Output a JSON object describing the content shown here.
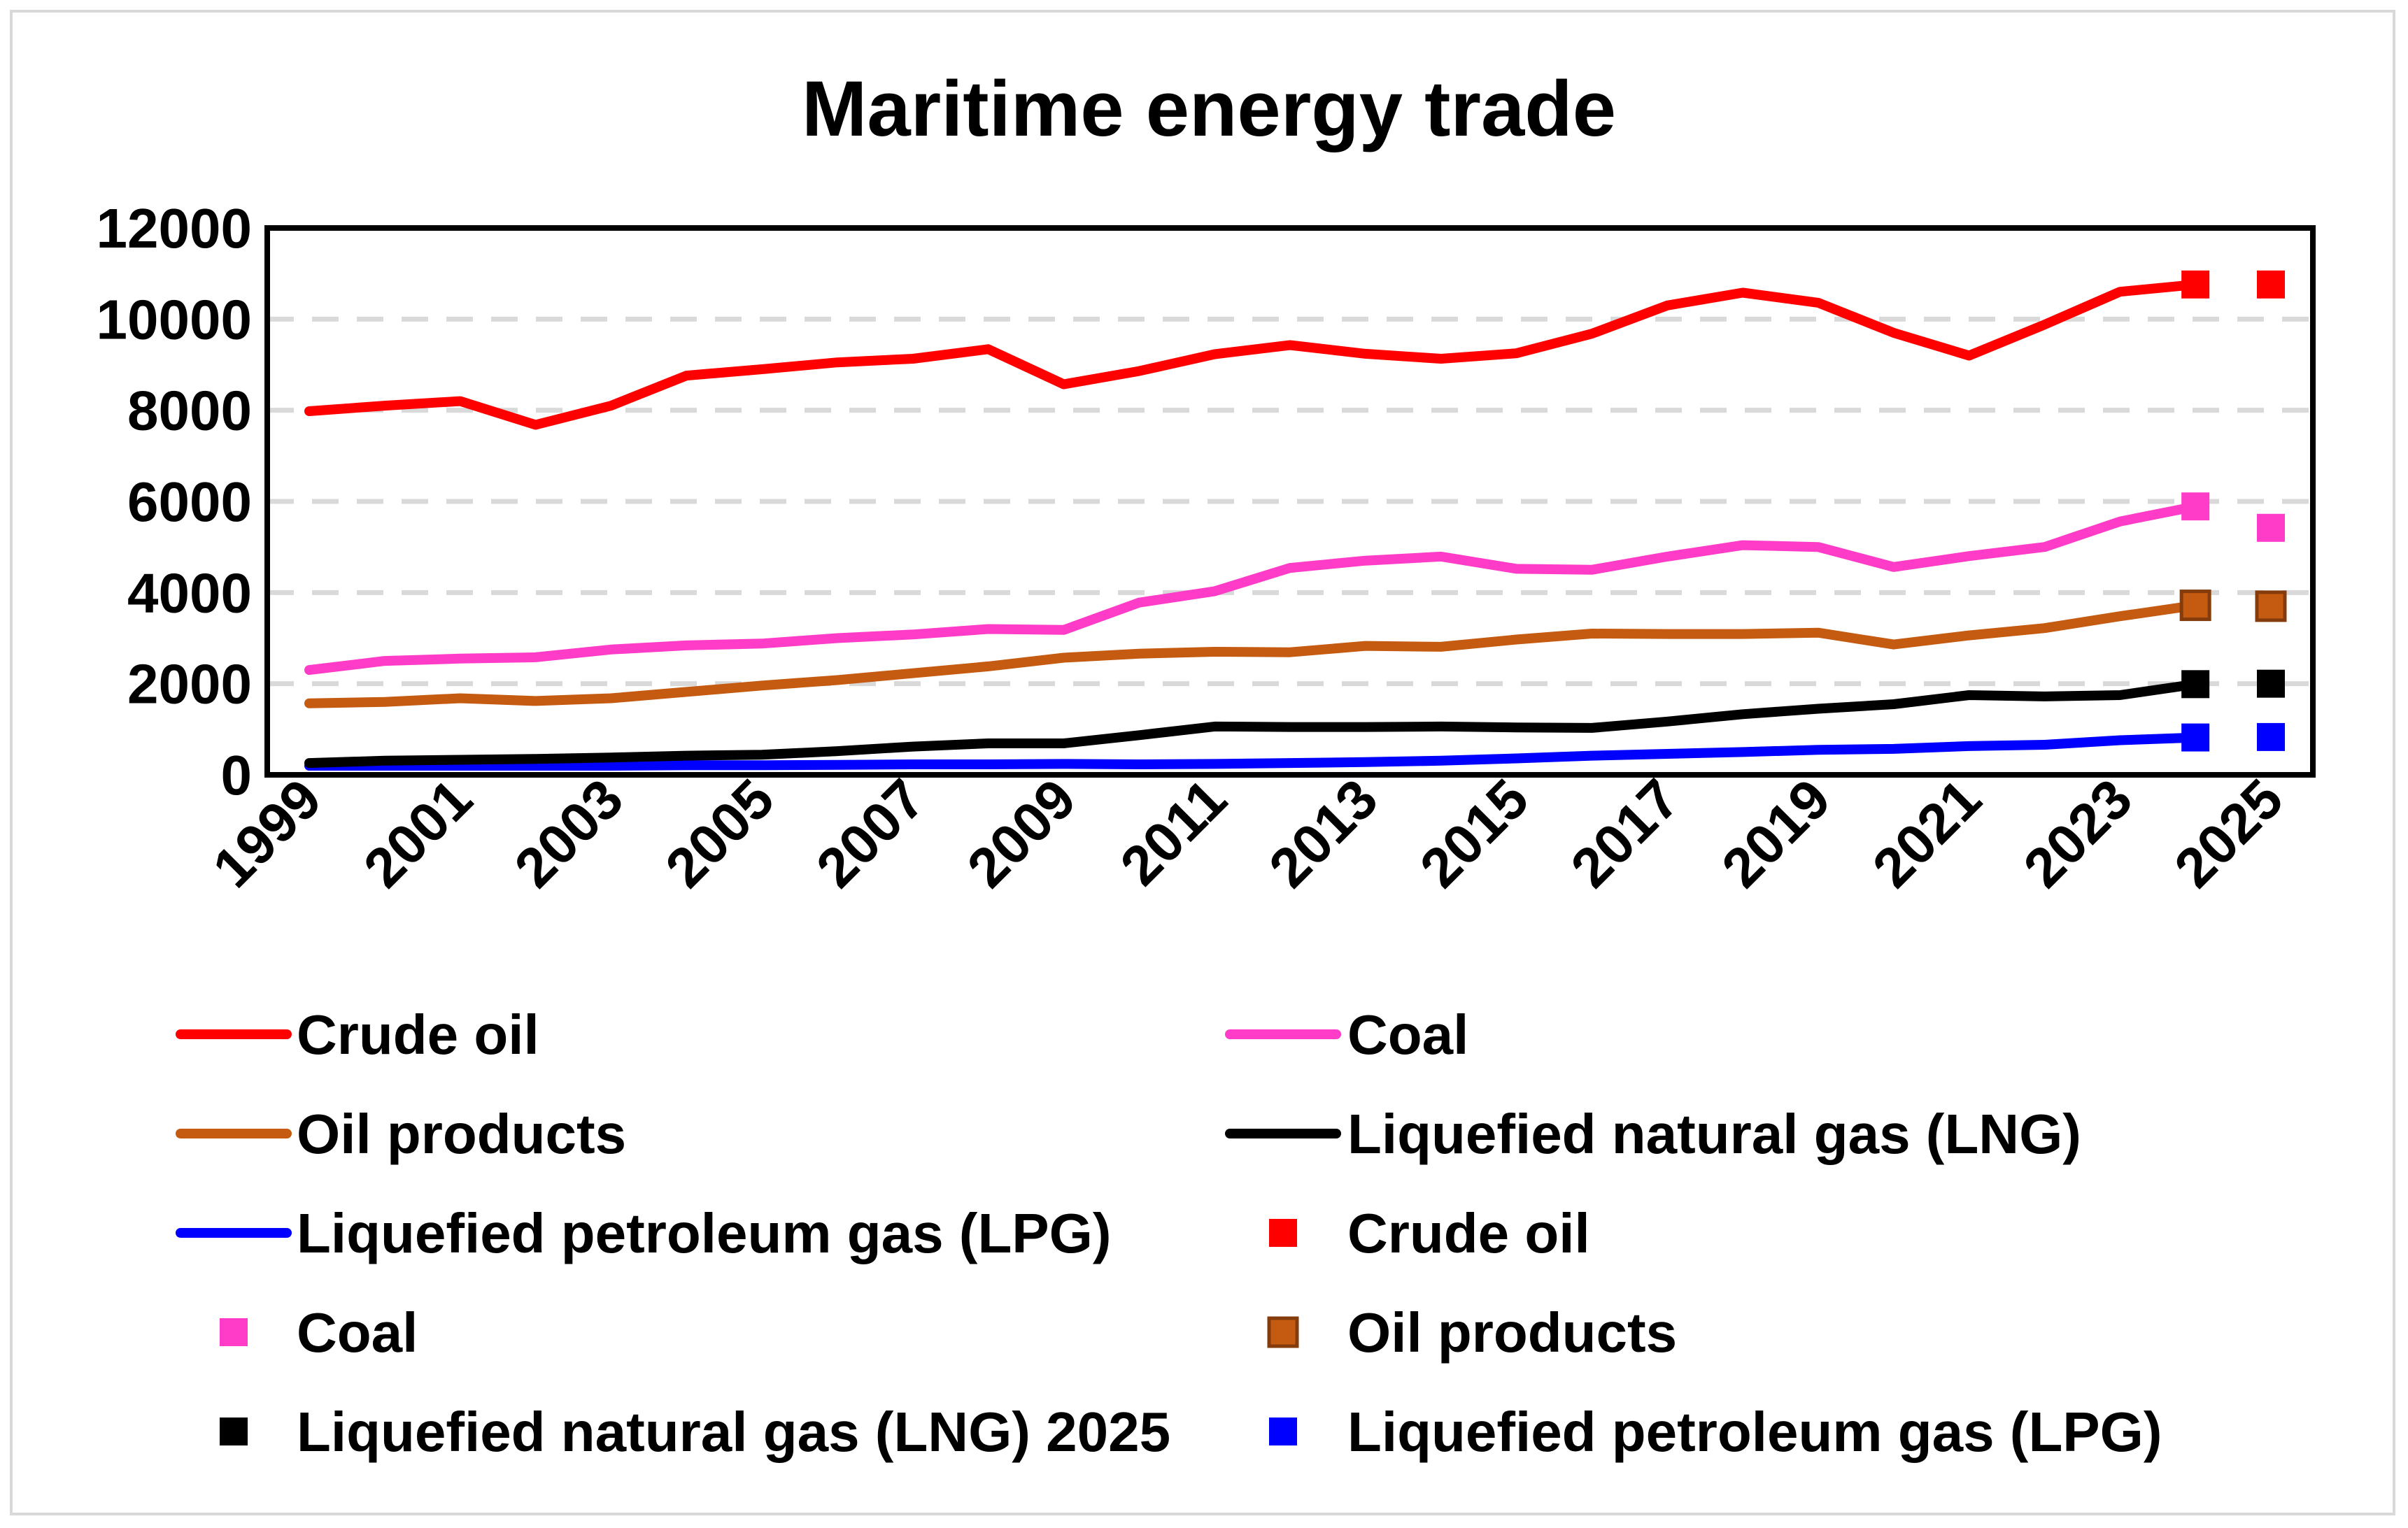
{
  "chart_data": {
    "type": "line",
    "title": "Maritime energy trade",
    "xlabel": "",
    "ylabel": "",
    "ylim": [
      0,
      12000
    ],
    "yticks": [
      "0",
      "2000",
      "4000",
      "6000",
      "8000",
      "10000",
      "12000"
    ],
    "xlim": [
      1999,
      2025
    ],
    "xticks": [
      "1999",
      "2001",
      "2003",
      "2005",
      "2007",
      "2009",
      "2011",
      "2013",
      "2015",
      "2017",
      "2019",
      "2021",
      "2023",
      "2025"
    ],
    "grid": "horizontal dashed",
    "legend_position": "bottom",
    "x": [
      1999,
      2000,
      2001,
      2002,
      2003,
      2004,
      2005,
      2006,
      2007,
      2008,
      2009,
      2010,
      2011,
      2012,
      2013,
      2014,
      2015,
      2016,
      2017,
      2018,
      2019,
      2020,
      2021,
      2022,
      2023,
      2024
    ],
    "series": [
      {
        "name": "Crude oil",
        "kind": "line",
        "color": "#ff0000",
        "values": [
          7980,
          8100,
          8200,
          7680,
          8100,
          8760,
          8900,
          9050,
          9130,
          9340,
          8570,
          8860,
          9230,
          9430,
          9240,
          9130,
          9250,
          9680,
          10300,
          10580,
          10360,
          9700,
          9200,
          9880,
          10600,
          10760
        ]
      },
      {
        "name": "Coal",
        "kind": "line",
        "color": "#ff3cc8",
        "values": [
          2300,
          2500,
          2550,
          2580,
          2750,
          2840,
          2880,
          3000,
          3080,
          3200,
          3180,
          3780,
          4030,
          4540,
          4700,
          4790,
          4520,
          4500,
          4790,
          5040,
          5000,
          4560,
          4800,
          5000,
          5560,
          5890
        ]
      },
      {
        "name": "Oil products",
        "kind": "line",
        "color": "#c55a11",
        "values": [
          1570,
          1600,
          1680,
          1620,
          1680,
          1820,
          1960,
          2080,
          2230,
          2380,
          2570,
          2660,
          2700,
          2690,
          2830,
          2810,
          2970,
          3100,
          3090,
          3090,
          3120,
          2860,
          3060,
          3220,
          3480,
          3720
        ]
      },
      {
        "name": "Liquefied natural gas (LNG)",
        "kind": "line",
        "color": "#000000",
        "values": [
          260,
          310,
          330,
          350,
          380,
          420,
          440,
          520,
          620,
          690,
          690,
          870,
          1060,
          1050,
          1050,
          1060,
          1040,
          1030,
          1170,
          1330,
          1450,
          1550,
          1750,
          1720,
          1750,
          1990
        ]
      },
      {
        "name": "Liquefied petroleum gas (LPG)",
        "kind": "line",
        "color": "#0000ff",
        "values": [
          200,
          200,
          200,
          200,
          200,
          210,
          210,
          220,
          230,
          230,
          240,
          230,
          240,
          260,
          280,
          310,
          360,
          420,
          460,
          500,
          550,
          570,
          630,
          660,
          760,
          820
        ]
      },
      {
        "name": "Crude oil",
        "kind": "marker",
        "color": "#ff0000",
        "x": [
          2024,
          2025
        ],
        "values": [
          10760,
          10760
        ]
      },
      {
        "name": "Coal",
        "kind": "marker",
        "color": "#ff3cc8",
        "x": [
          2024,
          2025
        ],
        "values": [
          5890,
          5420
        ]
      },
      {
        "name": "Oil products",
        "kind": "marker",
        "color": "#c55a11",
        "stroke": "#843c0c",
        "x": [
          2024,
          2025
        ],
        "values": [
          3720,
          3700
        ]
      },
      {
        "name": "Liquefied natural gas (LNG) 2025",
        "kind": "marker",
        "color": "#000000",
        "x": [
          2024,
          2025
        ],
        "values": [
          1990,
          2000
        ]
      },
      {
        "name": "Liquefied petroleum gas (LPG)",
        "kind": "marker",
        "color": "#0000ff",
        "x": [
          2024,
          2025
        ],
        "values": [
          820,
          830
        ]
      }
    ]
  }
}
